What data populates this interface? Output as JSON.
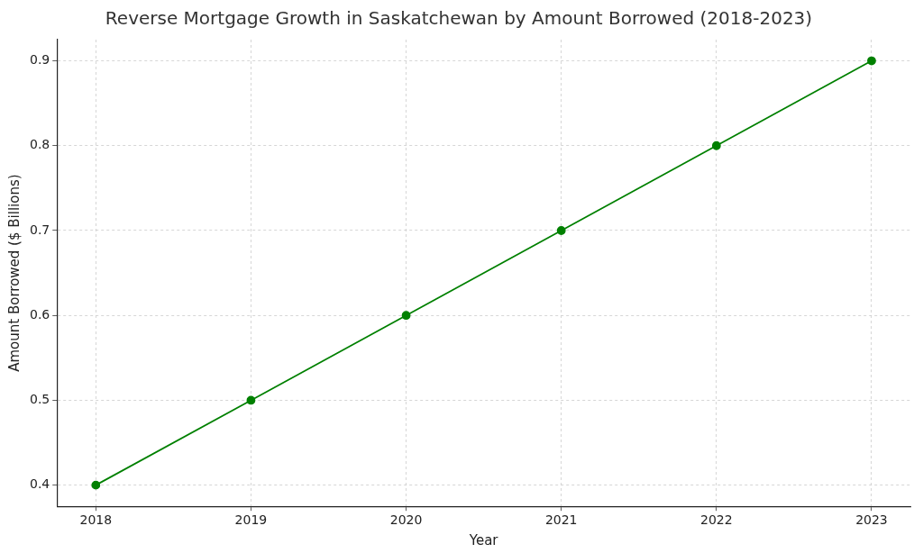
{
  "chart_data": {
    "type": "line",
    "title": "Reverse Mortgage Growth in Saskatchewan by Amount Borrowed (2018-2023)",
    "x_label": "Year",
    "y_label": "Amount Borrowed ($ Billions)",
    "x": [
      2018,
      2019,
      2020,
      2021,
      2022,
      2023
    ],
    "values": [
      0.4,
      0.5,
      0.6,
      0.7,
      0.8,
      0.9
    ],
    "color": "#008000",
    "marker": "circle",
    "line_style": "solid",
    "xlim": [
      2017.75,
      2023.25
    ],
    "xticks": [
      2018,
      2019,
      2020,
      2021,
      2022,
      2023
    ],
    "ylim": [
      0.375,
      0.925
    ],
    "yticks": [
      0.4,
      0.5,
      0.6,
      0.7,
      0.8,
      0.9
    ],
    "grid": true
  }
}
